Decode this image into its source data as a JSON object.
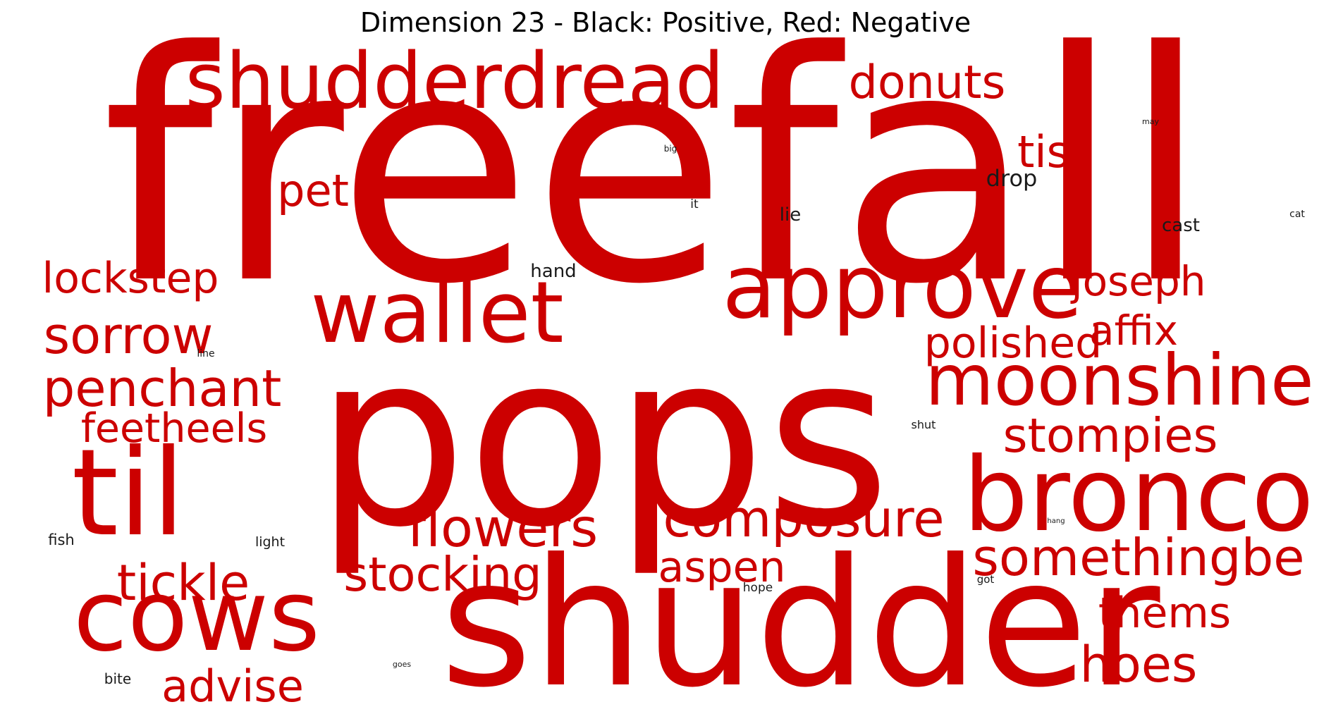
{
  "title": "Dimension 23 - Black: Positive, Red: Negative",
  "colors": {
    "positive": "#1a1a1a",
    "negative": "#cc0000"
  },
  "words": [
    {
      "text": "freefall",
      "sign": "negative"
    },
    {
      "text": "pops",
      "sign": "negative"
    },
    {
      "text": "shudder",
      "sign": "negative"
    },
    {
      "text": "shudderdread",
      "sign": "negative"
    },
    {
      "text": "wallet",
      "sign": "negative"
    },
    {
      "text": "approve",
      "sign": "negative"
    },
    {
      "text": "til",
      "sign": "negative"
    },
    {
      "text": "cows",
      "sign": "negative"
    },
    {
      "text": "bronco",
      "sign": "negative"
    },
    {
      "text": "moonshine",
      "sign": "negative"
    },
    {
      "text": "donuts",
      "sign": "negative"
    },
    {
      "text": "tis",
      "sign": "negative"
    },
    {
      "text": "pet",
      "sign": "negative"
    },
    {
      "text": "lockstep",
      "sign": "negative"
    },
    {
      "text": "sorrow",
      "sign": "negative"
    },
    {
      "text": "penchant",
      "sign": "negative"
    },
    {
      "text": "feetheels",
      "sign": "negative"
    },
    {
      "text": "joseph",
      "sign": "negative"
    },
    {
      "text": "affix",
      "sign": "negative"
    },
    {
      "text": "polished",
      "sign": "negative"
    },
    {
      "text": "stompies",
      "sign": "negative"
    },
    {
      "text": "composure",
      "sign": "negative"
    },
    {
      "text": "flowers",
      "sign": "negative"
    },
    {
      "text": "stocking",
      "sign": "negative"
    },
    {
      "text": "tickle",
      "sign": "negative"
    },
    {
      "text": "somethingbe",
      "sign": "negative"
    },
    {
      "text": "aspen",
      "sign": "negative"
    },
    {
      "text": "thems",
      "sign": "negative"
    },
    {
      "text": "hoes",
      "sign": "negative"
    },
    {
      "text": "advise",
      "sign": "negative"
    },
    {
      "text": "drop",
      "sign": "positive"
    },
    {
      "text": "lie",
      "sign": "positive"
    },
    {
      "text": "cast",
      "sign": "positive"
    },
    {
      "text": "hand",
      "sign": "positive"
    },
    {
      "text": "it",
      "sign": "positive"
    },
    {
      "text": "big",
      "sign": "positive"
    },
    {
      "text": "may",
      "sign": "positive"
    },
    {
      "text": "cat",
      "sign": "positive"
    },
    {
      "text": "line",
      "sign": "positive"
    },
    {
      "text": "shut",
      "sign": "positive"
    },
    {
      "text": "fish",
      "sign": "positive"
    },
    {
      "text": "light",
      "sign": "positive"
    },
    {
      "text": "hang",
      "sign": "positive"
    },
    {
      "text": "hope",
      "sign": "positive"
    },
    {
      "text": "got",
      "sign": "positive"
    },
    {
      "text": "goes",
      "sign": "positive"
    },
    {
      "text": "bite",
      "sign": "positive"
    }
  ]
}
